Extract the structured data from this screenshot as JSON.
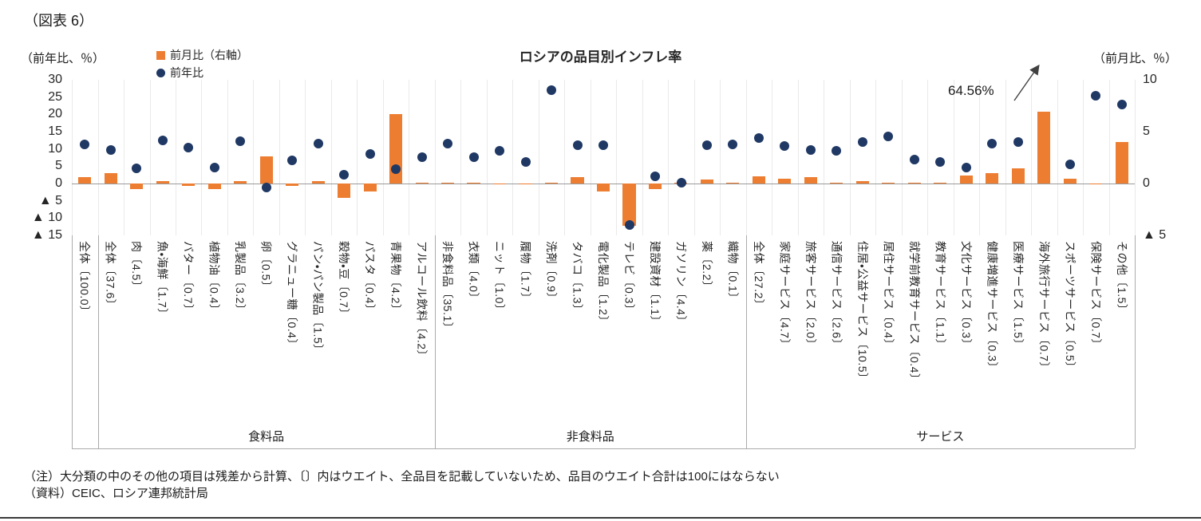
{
  "figure": {
    "fig_label": "（図表 6）",
    "left_axis_unit": "（前年比、％）",
    "right_axis_unit": "（前月比、％）",
    "note": "（注）大分類の中のその他の項目は残差から計算、〔〕内はウエイト、全品目を記載していないため、品目のウエイト合計は100にはならない",
    "source": "（資料）CEIC、ロシア連邦統計局"
  },
  "legend": {
    "mom": "前月比（右軸）",
    "yoy": "前年比"
  },
  "colors": {
    "bar": "#ED7D31",
    "dot": "#1F3864",
    "grid": "#EAEAEA",
    "axis_line": "#9b9b9b",
    "separator": "#ABABAB"
  },
  "chart_data": {
    "type": "bar",
    "title": "ロシアの品目別インフレ率",
    "categories": [
      "全体〔100.0〕",
      "全体〔37.6〕",
      "肉〔4.5〕",
      "魚・海鮮〔1.7〕",
      "バター〔0.7〕",
      "植物油〔0.4〕",
      "乳製品〔3.2〕",
      "卵〔0.5〕",
      "グラニュー糖〔0.4〕",
      "パン・パン製品〔1.5〕",
      "穀物・豆〔0.7〕",
      "パスタ〔0.4〕",
      "青果物〔4.2〕",
      "アルコール飲料〔4.2〕",
      "非食料品〔35.1〕",
      "衣類〔4.0〕",
      "ニット〔1.0〕",
      "履物〔1.7〕",
      "洗剤〔0.9〕",
      "タバコ〔1.3〕",
      "電化製品〔1.2〕",
      "テレビ〔0.3〕",
      "建設資材〔1.1〕",
      "ガソリン〔4.4〕",
      "薬〔2.2〕",
      "織物〔0.1〕",
      "全体〔27.2〕",
      "家庭サービス〔4.7〕",
      "旅客サービス〔2.0〕",
      "通信サービス〔2.6〕",
      "住居・公益サービス〔10.5〕",
      "居住サービス〔0.4〕",
      "就学前教育サービス〔0.4〕",
      "教育サービス〔1.1〕",
      "文化サービス〔0.3〕",
      "健康増進サービス〔0.3〕",
      "医療サービス〔1.5〕",
      "海外旅行サービス〔0.7〕",
      "スポーツサービス〔0.5〕",
      "保険サービス〔0.7〕",
      "その他〔1.5〕"
    ],
    "series": [
      {
        "name": "前月比（右軸）",
        "type": "bar",
        "axis": "right",
        "color": "#ED7D31",
        "values": [
          0.6,
          1.0,
          -0.5,
          0.2,
          -0.2,
          -0.5,
          0.2,
          2.6,
          -0.2,
          0.2,
          -1.4,
          -0.8,
          6.7,
          0.1,
          0.1,
          0.1,
          -0.1,
          -0.1,
          0.1,
          0.6,
          -0.8,
          -4.1,
          -0.5,
          0.1,
          0.4,
          0.1,
          0.7,
          0.5,
          0.6,
          0.1,
          0.2,
          0.1,
          0.1,
          0.1,
          0.8,
          1.0,
          1.5,
          6.9,
          0.5,
          -0.1,
          4.0
        ]
      },
      {
        "name": "前年比",
        "type": "scatter",
        "axis": "left",
        "color": "#1F3864",
        "values": [
          11.3,
          9.7,
          4.3,
          12.5,
          10.4,
          4.6,
          12.2,
          -1.2,
          6.7,
          11.5,
          2.5,
          8.5,
          4.2,
          7.6,
          11.5,
          7.6,
          9.5,
          6.2,
          27.0,
          11.1,
          11.1,
          -12.0,
          2.1,
          0.3,
          11.1,
          11.3,
          13.2,
          10.8,
          9.7,
          9.5,
          12.0,
          13.6,
          6.9,
          6.2,
          4.6,
          11.5,
          12.0,
          64.56,
          5.5,
          25.4,
          22.8
        ]
      }
    ],
    "left_axis": {
      "label": "前年比、％",
      "min": -15,
      "max": 30,
      "ticks": [
        {
          "v": 30,
          "label": "30"
        },
        {
          "v": 25,
          "label": "25"
        },
        {
          "v": 20,
          "label": "20"
        },
        {
          "v": 15,
          "label": "15"
        },
        {
          "v": 10,
          "label": "10"
        },
        {
          "v": 5,
          "label": "5"
        },
        {
          "v": 0,
          "label": "0"
        },
        {
          "v": -5,
          "label": "▲ 5"
        },
        {
          "v": -10,
          "label": "▲ 10"
        },
        {
          "v": -15,
          "label": "▲ 15"
        }
      ]
    },
    "right_axis": {
      "label": "前月比、％",
      "min": -5,
      "max": 10,
      "ticks": [
        {
          "v": 10,
          "label": "10"
        },
        {
          "v": 5,
          "label": "5"
        },
        {
          "v": 0,
          "label": "0"
        },
        {
          "v": -5,
          "label": "▲ 5"
        }
      ]
    },
    "groups": [
      {
        "label": "",
        "start": 0,
        "end": 0
      },
      {
        "label": "食料品",
        "start": 1,
        "end": 13
      },
      {
        "label": "非食料品",
        "start": 14,
        "end": 25
      },
      {
        "label": "サービス",
        "start": 26,
        "end": 40
      }
    ],
    "annotation": {
      "text": "64.56%",
      "category_index": 37,
      "series": "前年比"
    }
  }
}
